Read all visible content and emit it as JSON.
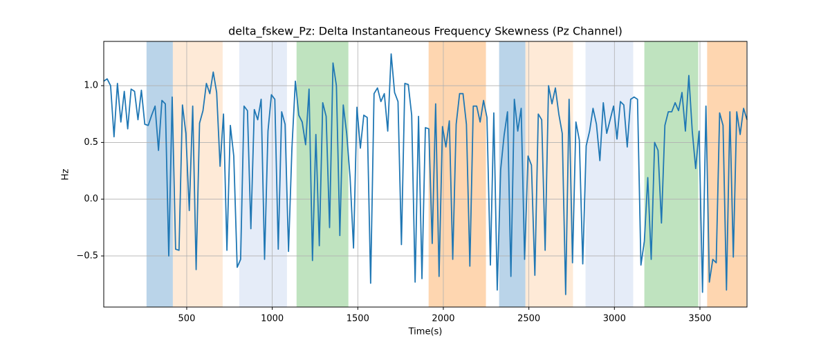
{
  "chart_data": {
    "type": "line",
    "title": "delta_fskew_Pz: Delta Instantaneous Frequency Skewness (Pz Channel)",
    "x_label": "Time(s)",
    "y_label": "Hz",
    "xlim": [
      15,
      3775
    ],
    "ylim": [
      -0.95,
      1.39
    ],
    "xticks": [
      500,
      1000,
      1500,
      2000,
      2500,
      3000,
      3500
    ],
    "yticks": [
      {
        "value": -0.5,
        "label": "−0.5"
      },
      {
        "value": 0,
        "label": "0.0"
      },
      {
        "value": 0.5,
        "label": "0.5"
      },
      {
        "value": 1.0,
        "label": "1.0"
      }
    ],
    "grid": true,
    "spans": [
      {
        "start": 265,
        "end": 419,
        "color": "#bad4e9"
      },
      {
        "start": 419,
        "end": 710,
        "color": "#feead7"
      },
      {
        "start": 807,
        "end": 1086,
        "color": "#e5ecf8"
      },
      {
        "start": 1142,
        "end": 1445,
        "color": "#bfe3bf"
      },
      {
        "start": 1914,
        "end": 2249,
        "color": "#fed6b0"
      },
      {
        "start": 2326,
        "end": 2480,
        "color": "#bad4e9"
      },
      {
        "start": 2480,
        "end": 2758,
        "color": "#feead7"
      },
      {
        "start": 2831,
        "end": 3110,
        "color": "#e5ecf8"
      },
      {
        "start": 3175,
        "end": 3490,
        "color": "#bfe3bf"
      },
      {
        "start": 3542,
        "end": 3771,
        "color": "#fed6b0"
      }
    ],
    "x": [
      15,
      35,
      55,
      75,
      95,
      115,
      135,
      155,
      175,
      195,
      215,
      235,
      255,
      275,
      295,
      315,
      335,
      355,
      375,
      395,
      415,
      435,
      455,
      475,
      495,
      515,
      535,
      555,
      575,
      595,
      615,
      635,
      655,
      675,
      695,
      715,
      735,
      755,
      775,
      795,
      815,
      835,
      855,
      875,
      895,
      915,
      935,
      955,
      975,
      995,
      1015,
      1035,
      1055,
      1075,
      1095,
      1115,
      1135,
      1155,
      1175,
      1195,
      1215,
      1235,
      1255,
      1275,
      1295,
      1315,
      1335,
      1355,
      1375,
      1395,
      1415,
      1435,
      1455,
      1475,
      1495,
      1515,
      1535,
      1555,
      1575,
      1595,
      1615,
      1635,
      1655,
      1675,
      1695,
      1715,
      1735,
      1755,
      1775,
      1795,
      1815,
      1835,
      1855,
      1875,
      1895,
      1915,
      1935,
      1955,
      1975,
      1995,
      2015,
      2035,
      2055,
      2075,
      2095,
      2115,
      2135,
      2155,
      2175,
      2195,
      2215,
      2235,
      2255,
      2275,
      2295,
      2315,
      2335,
      2355,
      2375,
      2395,
      2415,
      2435,
      2455,
      2475,
      2495,
      2515,
      2535,
      2555,
      2575,
      2595,
      2615,
      2635,
      2655,
      2675,
      2695,
      2715,
      2735,
      2755,
      2775,
      2795,
      2815,
      2835,
      2855,
      2875,
      2895,
      2915,
      2935,
      2955,
      2975,
      2995,
      3015,
      3035,
      3055,
      3075,
      3095,
      3115,
      3135,
      3155,
      3175,
      3195,
      3215,
      3235,
      3255,
      3275,
      3295,
      3315,
      3335,
      3355,
      3375,
      3395,
      3415,
      3435,
      3455,
      3475,
      3495,
      3515,
      3535,
      3555,
      3575,
      3595,
      3615,
      3635,
      3655,
      3675,
      3695,
      3715,
      3735,
      3755,
      3775
    ],
    "series": [
      {
        "name": "delta_fskew_Pz",
        "color": "#1f77b4",
        "values": [
          1.04,
          1.06,
          1.0,
          0.55,
          1.02,
          0.68,
          0.95,
          0.62,
          0.97,
          0.95,
          0.7,
          0.96,
          0.66,
          0.65,
          0.74,
          0.82,
          0.43,
          0.87,
          0.84,
          -0.5,
          0.9,
          -0.44,
          -0.45,
          0.83,
          0.58,
          -0.1,
          0.82,
          -0.62,
          0.67,
          0.78,
          1.02,
          0.93,
          1.12,
          0.94,
          0.29,
          0.75,
          -0.45,
          0.65,
          0.38,
          -0.6,
          -0.53,
          0.82,
          0.78,
          -0.26,
          0.79,
          0.7,
          0.88,
          -0.53,
          0.6,
          0.92,
          0.88,
          -0.44,
          0.77,
          0.66,
          -0.46,
          0.45,
          1.04,
          0.74,
          0.68,
          0.48,
          0.97,
          -0.54,
          0.57,
          -0.41,
          0.85,
          0.73,
          -0.25,
          1.2,
          1.0,
          -0.32,
          0.83,
          0.58,
          0.19,
          -0.43,
          0.81,
          0.45,
          0.74,
          0.72,
          -0.74,
          0.93,
          0.98,
          0.86,
          0.93,
          0.6,
          1.28,
          0.94,
          0.86,
          -0.4,
          1.02,
          1.01,
          0.74,
          -0.73,
          0.73,
          -0.7,
          0.63,
          0.62,
          -0.39,
          0.84,
          -0.68,
          0.64,
          0.46,
          0.69,
          -0.53,
          0.66,
          0.93,
          0.93,
          0.66,
          -0.59,
          0.82,
          0.82,
          0.68,
          0.87,
          0.72,
          -0.58,
          0.76,
          -0.8,
          0.26,
          0.56,
          0.77,
          -0.68,
          0.88,
          0.6,
          0.8,
          -0.53,
          0.38,
          0.3,
          -0.67,
          0.75,
          0.7,
          -0.45,
          1.0,
          0.84,
          0.98,
          0.75,
          0.58,
          -0.84,
          0.88,
          -0.56,
          0.68,
          0.52,
          -0.57,
          0.47,
          0.6,
          0.8,
          0.66,
          0.34,
          0.85,
          0.58,
          0.7,
          0.82,
          0.53,
          0.86,
          0.83,
          0.46,
          0.88,
          0.9,
          0.88,
          -0.58,
          -0.37,
          0.19,
          -0.53,
          0.5,
          0.43,
          -0.21,
          0.65,
          0.77,
          0.77,
          0.85,
          0.78,
          0.94,
          0.6,
          1.09,
          0.6,
          0.27,
          0.6,
          -0.82,
          0.82,
          -0.73,
          -0.53,
          -0.56,
          0.76,
          0.65,
          -0.8,
          0.77,
          -0.51,
          0.77,
          0.57,
          0.8,
          0.7
        ]
      }
    ]
  }
}
